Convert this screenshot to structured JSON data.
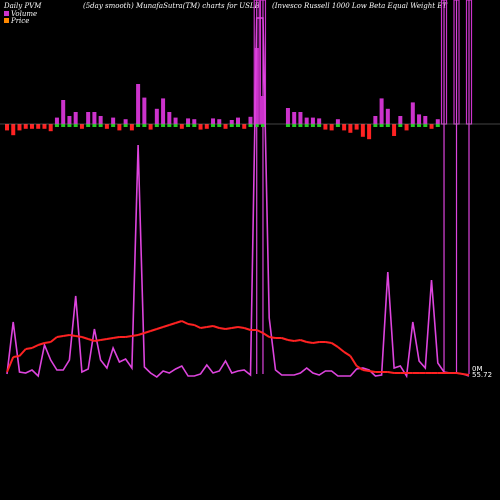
{
  "header": {
    "left": "Daily PVM",
    "center": "(5day smooth) MunafaSutra(TM) charts for USLB",
    "right": "(Invesco  Russell 1000  Low  Beta  Equal Weight ET"
  },
  "legend": {
    "volume_label": "Volume",
    "price_label": "Price",
    "volume_color": "#cc33cc",
    "price_color": "#ff8800"
  },
  "chart_data": {
    "type": "bar",
    "title": "",
    "price_ticks": [
      "0M",
      "55.72"
    ],
    "colors": {
      "up": "#22cc22",
      "down": "#ff2222",
      "volume_bar": "#cc33cc",
      "volume_line": "#dd44dd",
      "baseline": "#888888"
    },
    "pvm": [
      -0.16,
      -0.28,
      -0.16,
      -0.12,
      -0.12,
      -0.12,
      -0.12,
      -0.18,
      0.16,
      0.6,
      0.2,
      0.3,
      -0.12,
      0.3,
      0.3,
      0.2,
      -0.12,
      0.16,
      -0.16,
      0.12,
      -0.16,
      1,
      0.66,
      -0.14,
      0.38,
      0.64,
      0.3,
      0.16,
      -0.12,
      0.14,
      0.12,
      -0.14,
      -0.12,
      0.14,
      0.12,
      -0.12,
      0.1,
      0.16,
      -0.12,
      0.18,
      1.9,
      0.7,
      0,
      0,
      0,
      0.4,
      0.3,
      0.3,
      0.16,
      0.16,
      0.14,
      -0.14,
      -0.16,
      0.12,
      -0.16,
      -0.22,
      -0.14,
      -0.32,
      -0.38,
      0.2,
      0.64,
      0.38,
      -0.3,
      0.2,
      -0.16,
      0.54,
      0.24,
      0.2,
      -0.12,
      0.12,
      0,
      0,
      0,
      0,
      0
    ],
    "pvm_up": [
      false,
      false,
      false,
      false,
      false,
      false,
      false,
      false,
      true,
      true,
      true,
      true,
      false,
      true,
      true,
      true,
      false,
      true,
      false,
      true,
      false,
      true,
      true,
      false,
      true,
      true,
      true,
      true,
      false,
      true,
      true,
      false,
      false,
      true,
      true,
      false,
      true,
      true,
      false,
      true,
      true,
      true,
      true,
      true,
      true,
      true,
      true,
      true,
      true,
      true,
      true,
      false,
      false,
      true,
      false,
      false,
      false,
      false,
      false,
      true,
      true,
      true,
      false,
      true,
      false,
      true,
      true,
      true,
      false,
      true,
      true,
      true,
      true,
      true,
      true
    ],
    "price": [
      372,
      357,
      356,
      349,
      348,
      345,
      343,
      342,
      337,
      336,
      335,
      336,
      337,
      339,
      341,
      340,
      339,
      338,
      337,
      337,
      336,
      335,
      333,
      331,
      329,
      327,
      325,
      323,
      321,
      324,
      325,
      328,
      327,
      326,
      328,
      329,
      328,
      327,
      328,
      330,
      330,
      333,
      337,
      338,
      338,
      340,
      341,
      340,
      342,
      343,
      342,
      342,
      343,
      347,
      352,
      356,
      366,
      370,
      371,
      372,
      372,
      372,
      373,
      373,
      373,
      373,
      373,
      373,
      373,
      373,
      373,
      373,
      373,
      374,
      375
    ],
    "volume": [
      374,
      322,
      372,
      373,
      370,
      376,
      345,
      360,
      370,
      370,
      360,
      296,
      372,
      369,
      329,
      360,
      368,
      348,
      362,
      359,
      368,
      145,
      367,
      373,
      377,
      371,
      373,
      369,
      366,
      376,
      376,
      374,
      365,
      373,
      371,
      361,
      373,
      371,
      370,
      375,
      18,
      18,
      318,
      370,
      375,
      375,
      375,
      373,
      368,
      373,
      375,
      371,
      371,
      376,
      376,
      376,
      369,
      368,
      370,
      376,
      375,
      272,
      368,
      366,
      376,
      322,
      361,
      368,
      280,
      363,
      372,
      373,
      373,
      374,
      376
    ],
    "spikes": [
      {
        "index": 40,
        "to": 0
      },
      {
        "index": 41,
        "to": 0
      },
      {
        "index": 70,
        "to": 0
      },
      {
        "index": 72,
        "to": 0
      },
      {
        "index": 74,
        "to": 0
      }
    ]
  }
}
